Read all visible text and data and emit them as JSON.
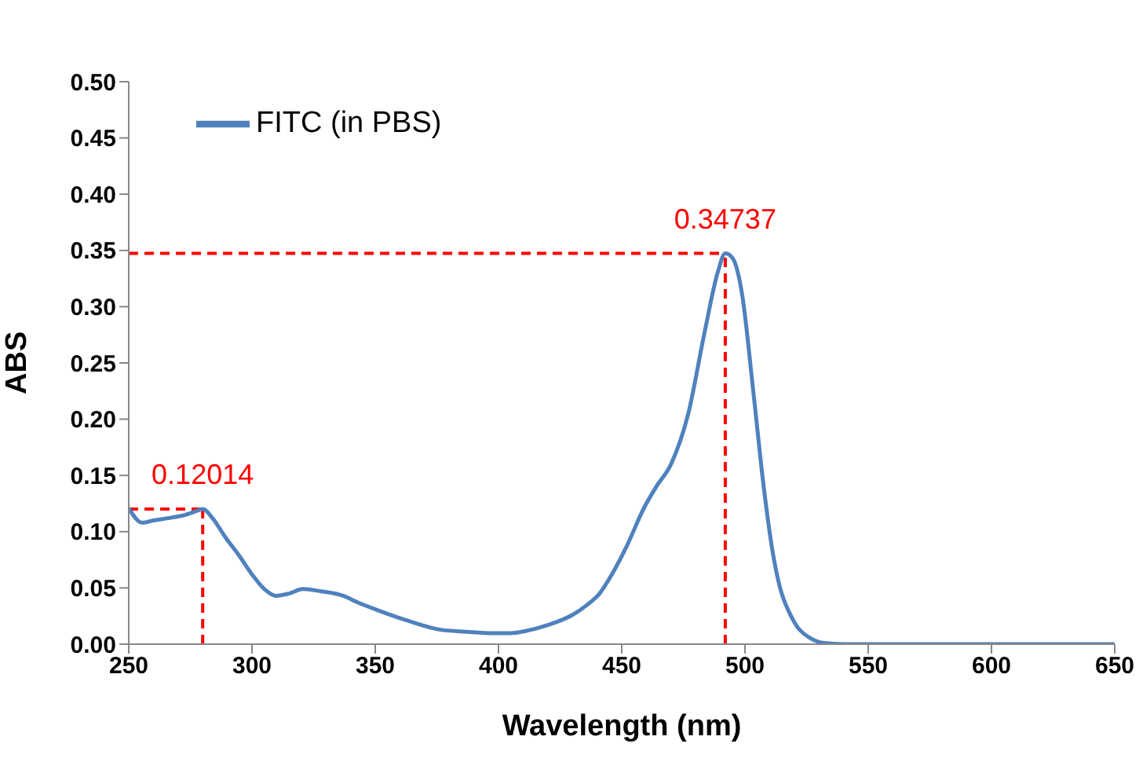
{
  "chart_data": {
    "type": "line",
    "xlabel": "Wavelength (nm)",
    "ylabel": "ABS",
    "x": [
      250,
      255.4,
      260,
      267.4,
      273,
      278.3,
      280,
      284,
      289,
      295,
      300,
      305,
      309.8,
      315,
      320.7,
      328,
      337,
      343,
      350,
      363,
      376,
      387,
      398,
      405,
      411,
      420,
      430,
      436,
      441,
      446,
      452,
      459,
      464,
      470,
      477,
      483.5,
      489,
      492,
      495,
      498.9,
      503.3,
      507.7,
      511,
      514.3,
      518,
      521,
      526,
      532,
      540,
      560,
      600,
      650
    ],
    "series": [
      {
        "name": "FITC (in PBS)",
        "color": "#4f81bd",
        "values": [
          0.121,
          0.108,
          0.11,
          0.1125,
          0.115,
          0.119,
          0.12014,
          0.112,
          0.0957,
          0.078,
          0.062,
          0.049,
          0.043,
          0.045,
          0.049,
          0.047,
          0.043,
          0.037,
          0.031,
          0.021,
          0.013,
          0.011,
          0.0097,
          0.0098,
          0.0117,
          0.017,
          0.026,
          0.035,
          0.045,
          0.062,
          0.087,
          0.121,
          0.14,
          0.16,
          0.205,
          0.276,
          0.331,
          0.34737,
          0.343,
          0.31,
          0.226,
          0.138,
          0.085,
          0.0495,
          0.028,
          0.016,
          0.006,
          0.001,
          0,
          0,
          0,
          0
        ]
      }
    ],
    "xlim": [
      250,
      650
    ],
    "xticks": [
      250,
      300,
      350,
      400,
      450,
      500,
      550,
      600,
      650
    ],
    "ylim": [
      0,
      0.5
    ],
    "yticks": [
      {
        "value": 0,
        "label": "0.00"
      },
      {
        "value": 0.05,
        "label": "0.05"
      },
      {
        "value": 0.1,
        "label": "0.10"
      },
      {
        "value": 0.15,
        "label": "0.15"
      },
      {
        "value": 0.2,
        "label": "0.20"
      },
      {
        "value": 0.25,
        "label": "0.25"
      },
      {
        "value": 0.3,
        "label": "0.30"
      },
      {
        "value": 0.35,
        "label": "0.35"
      },
      {
        "value": 0.4,
        "label": "0.40"
      },
      {
        "value": 0.45,
        "label": "0.45"
      },
      {
        "value": 0.5,
        "label": "0.50"
      }
    ],
    "annotations": [
      {
        "text": "0.12014",
        "x": 280,
        "y": 0.12014
      },
      {
        "text": "0.34737",
        "x": 492,
        "y": 0.34737
      }
    ],
    "grid": false,
    "legend": "top left",
    "marker": "none",
    "line_style": "solid"
  }
}
